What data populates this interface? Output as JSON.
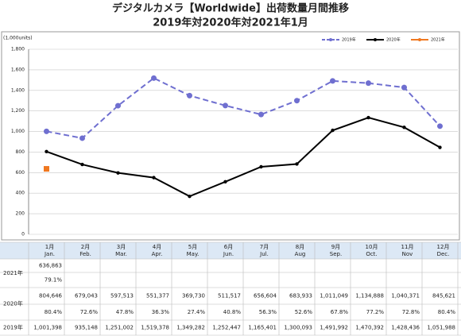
{
  "chart_data": {
    "type": "line",
    "title": "デジタルカメラ【Worldwide】出荷数量月間推移",
    "subtitle": "2019年対2020年対2021年1月",
    "y_unit": "(1,000units)",
    "categories_jp": [
      "1月",
      "2月",
      "3月",
      "4月",
      "5月",
      "6月",
      "7月",
      "8月",
      "9月",
      "10月",
      "11月",
      "12月"
    ],
    "categories": [
      "Jan.",
      "Feb.",
      "Mar.",
      "Apr.",
      "May.",
      "Jun.",
      "Jul.",
      "Aug",
      "Sep.",
      "Oct.",
      "Nov",
      "Dec."
    ],
    "ylim": [
      0,
      1800
    ],
    "yticks": [
      0,
      200,
      400,
      600,
      800,
      {
        "value": 1000,
        "label": "1,000"
      },
      {
        "value": 1200,
        "label": "1,200"
      },
      {
        "value": 1400,
        "label": "1,400"
      },
      {
        "value": 1600,
        "label": "1,600"
      },
      {
        "value": 1800,
        "label": "1,800"
      }
    ],
    "grid": true,
    "legend": "top-right",
    "series": [
      {
        "name": "2019年",
        "color": "#6f6fd0",
        "dash": true,
        "marker": "circle",
        "values": [
          1001.398,
          935.148,
          1251.002,
          1519.378,
          1349.282,
          1252.447,
          1165.401,
          1300.093,
          1491.992,
          1470.392,
          1428.436,
          1051.988
        ],
        "value_labels": [
          "1,001,398",
          "935,148",
          "1,251,002",
          "1,519,378",
          "1,349,282",
          "1,252,447",
          "1,165,401",
          "1,300,093",
          "1,491,992",
          "1,470,392",
          "1,428,436",
          "1,051,988"
        ]
      },
      {
        "name": "2020年",
        "color": "#000000",
        "dash": false,
        "marker": "circle",
        "values": [
          804.646,
          679.043,
          597.513,
          551.377,
          369.73,
          511.517,
          656.604,
          683.933,
          1011.049,
          1134.888,
          1040.371,
          845.621
        ],
        "value_labels": [
          "804,646",
          "679,043",
          "597,513",
          "551,377",
          "369,730",
          "511,517",
          "656,604",
          "683,933",
          "1,011,049",
          "1,134,888",
          "1,040,371",
          "845,621"
        ],
        "ratio_labels": [
          "80.4%",
          "72.6%",
          "47.8%",
          "36.3%",
          "27.4%",
          "40.8%",
          "56.3%",
          "52.6%",
          "67.8%",
          "77.2%",
          "72.8%",
          "80.4%"
        ]
      },
      {
        "name": "2021年",
        "color": "#f07820",
        "dash": false,
        "marker": "square",
        "values": [
          636.863,
          null,
          null,
          null,
          null,
          null,
          null,
          null,
          null,
          null,
          null,
          null
        ],
        "value_labels": [
          "636,863"
        ],
        "ratio_labels": [
          "79.1%"
        ]
      }
    ]
  }
}
